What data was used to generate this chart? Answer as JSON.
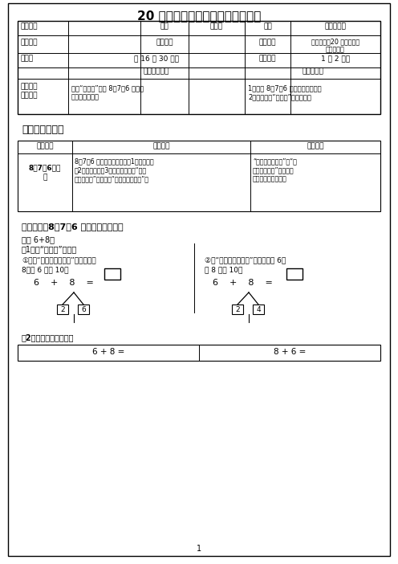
{
  "title": "20 以内的进位加法（二）教学教案",
  "bg_color": "#ffffff",
  "section1_title": "一、知识梳理：",
  "knowledge_point": "《知识点》8、7、6 加几的计算方法。",
  "calc_title": "计算 6+8。",
  "method_title": "（1）用“凑十法”计算。",
  "page_num": "1"
}
